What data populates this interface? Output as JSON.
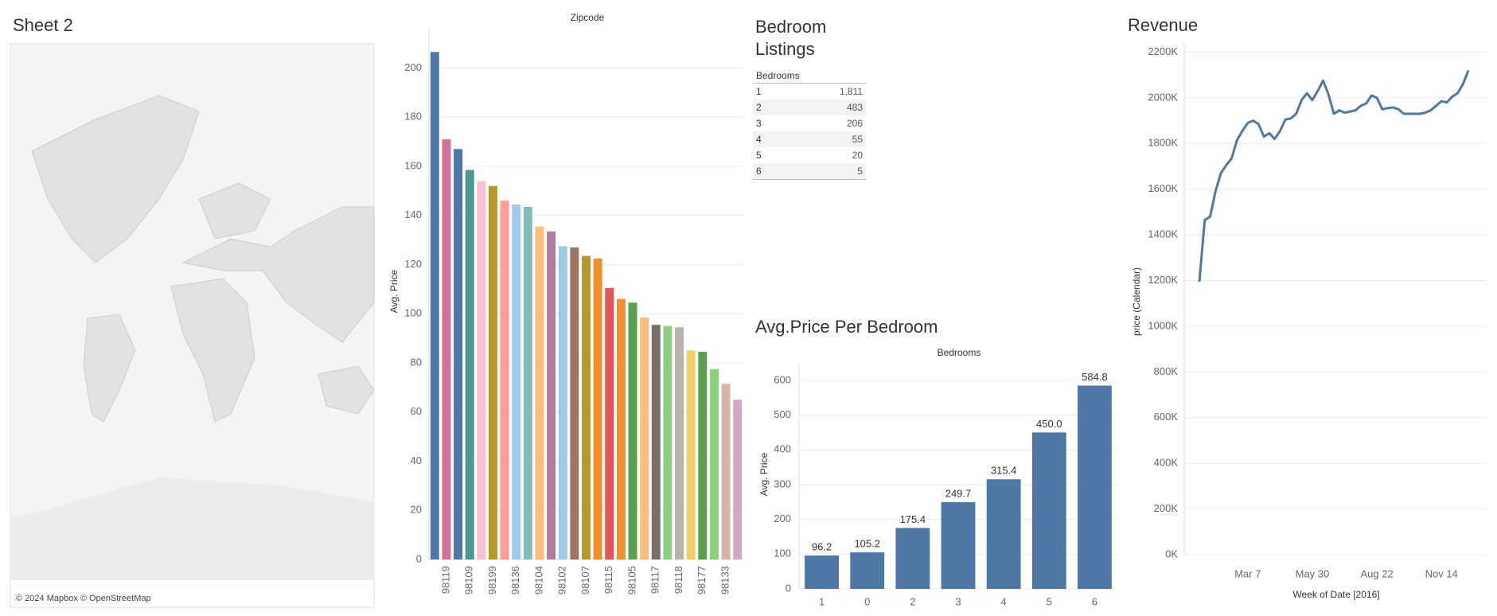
{
  "sheet_title": "Sheet 2",
  "map": {
    "attribution": "© 2024 Mapbox © OpenStreetMap"
  },
  "bedroom_listings": {
    "title": "Bedroom Listings",
    "header": "Bedrooms",
    "rows": [
      [
        "1",
        "1,811"
      ],
      [
        "2",
        "483"
      ],
      [
        "3",
        "206"
      ],
      [
        "4",
        "55"
      ],
      [
        "5",
        "20"
      ],
      [
        "6",
        "5"
      ]
    ]
  },
  "chart_data": [
    {
      "type": "bar",
      "x_header": "Zipcode",
      "y_label": "Avg. Price",
      "categories": [
        null,
        "98119",
        null,
        "98109",
        null,
        "98199",
        null,
        "98136",
        null,
        "98104",
        null,
        "98102",
        null,
        "98107",
        null,
        "98115",
        null,
        "98105",
        null,
        "98117",
        null,
        "98118",
        null,
        "98177",
        null,
        "98133",
        null
      ],
      "values": [
        206.5,
        171,
        167,
        158.5,
        154,
        152,
        146,
        144.5,
        143.5,
        135.5,
        133.5,
        127.5,
        127,
        123.5,
        122.5,
        110.5,
        106,
        104.5,
        98.5,
        95.5,
        95,
        94.5,
        85,
        84.5,
        77.5,
        71.5,
        65
      ],
      "colors": [
        "#4e79a7",
        "#d37295",
        "#4e79a7",
        "#499894",
        "#fabfd2",
        "#b6992d",
        "#ff9d9a",
        "#a0cbe8",
        "#86bcb6",
        "#ffbe7d",
        "#b07aa1",
        "#a0cbe8",
        "#9d7660",
        "#b6992d",
        "#f28e2b",
        "#e15759",
        "#f28e2b",
        "#59a14f",
        "#ffbe7d",
        "#79706e",
        "#8cd17d",
        "#bab0ac",
        "#f1ce63",
        "#59a14f",
        "#8cd17d",
        "#d7b5a6",
        "#d4a6c8"
      ],
      "ylim": [
        0,
        216
      ],
      "yticks": [
        0,
        20,
        40,
        60,
        80,
        100,
        120,
        140,
        160,
        180,
        200
      ],
      "grid": true
    },
    {
      "type": "bar",
      "title": "Avg.Price Per Bedroom",
      "x_header": "Bedrooms",
      "y_label": "Avg. Price",
      "categories": [
        "1",
        "0",
        "2",
        "3",
        "4",
        "5",
        "6"
      ],
      "values": [
        96.2,
        105.2,
        175.4,
        249.7,
        315.4,
        450.0,
        584.8
      ],
      "value_labels": [
        "96.2",
        "105.2",
        "175.4",
        "249.7",
        "315.4",
        "450.0",
        "584.8"
      ],
      "color": "#4e79a7",
      "ylim": [
        0,
        650
      ],
      "yticks": [
        0,
        100,
        200,
        300,
        400,
        500,
        600
      ],
      "grid": true
    },
    {
      "type": "line",
      "title": "Revenue",
      "y_label": "price (Calendar)",
      "x_label": "Week of Date [2016]",
      "categories": [
        null,
        null,
        null,
        null,
        null,
        null,
        null,
        null,
        null,
        "Mar 7",
        null,
        null,
        null,
        null,
        null,
        null,
        null,
        null,
        null,
        null,
        null,
        "May 30",
        null,
        null,
        null,
        null,
        null,
        null,
        null,
        null,
        null,
        null,
        null,
        "Aug 22",
        null,
        null,
        null,
        null,
        null,
        null,
        null,
        null,
        null,
        null,
        null,
        "Nov 14",
        null,
        null,
        null,
        null,
        null
      ],
      "values": [
        1195000,
        1465000,
        1480000,
        1590000,
        1670000,
        1705000,
        1735000,
        1815000,
        1855000,
        1890000,
        1900000,
        1885000,
        1830000,
        1845000,
        1820000,
        1855000,
        1905000,
        1910000,
        1930000,
        1990000,
        2020000,
        1990000,
        2030000,
        2075000,
        2015000,
        1930000,
        1945000,
        1935000,
        1940000,
        1945000,
        1965000,
        1975000,
        2010000,
        2000000,
        1950000,
        1955000,
        1958000,
        1950000,
        1930000,
        1930000,
        1930000,
        1930000,
        1935000,
        1945000,
        1965000,
        1985000,
        1980000,
        2005000,
        2020000,
        2060000,
        2120000
      ],
      "color": "#4e79a7",
      "ylim": [
        0,
        2240000
      ],
      "yticks": [
        {
          "value": 0,
          "label": "0K"
        },
        {
          "value": 200000,
          "label": "200K"
        },
        {
          "value": 400000,
          "label": "400K"
        },
        {
          "value": 600000,
          "label": "600K"
        },
        {
          "value": 800000,
          "label": "800K"
        },
        {
          "value": 1000000,
          "label": "1000K"
        },
        {
          "value": 1200000,
          "label": "1200K"
        },
        {
          "value": 1400000,
          "label": "1400K"
        },
        {
          "value": 1600000,
          "label": "1600K"
        },
        {
          "value": 1800000,
          "label": "1800K"
        },
        {
          "value": 2000000,
          "label": "2000K"
        },
        {
          "value": 2200000,
          "label": "2200K"
        }
      ],
      "grid": true
    }
  ]
}
